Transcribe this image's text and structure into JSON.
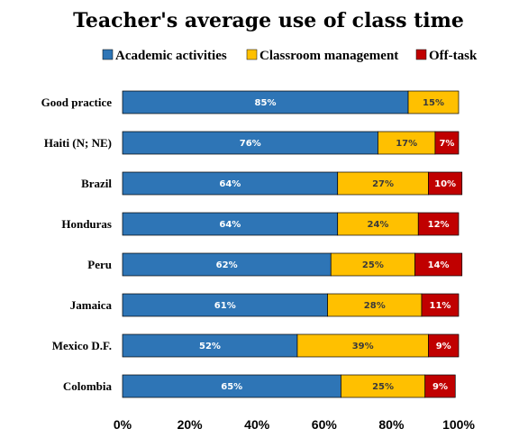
{
  "chart_data": {
    "type": "bar",
    "orientation": "horizontal",
    "stacked": true,
    "title": "Teacher's average use of class time",
    "categories": [
      "Good practice",
      "Haiti (N; NE)",
      "Brazil",
      "Honduras",
      "Peru",
      "Jamaica",
      "Mexico D.F.",
      "Colombia"
    ],
    "series": [
      {
        "name": "Academic activities",
        "color": "#2e75b6",
        "label_color": "#ffffff",
        "values": [
          85,
          76,
          64,
          64,
          62,
          61,
          52,
          65
        ],
        "labels": [
          "85%",
          "76%",
          "64%",
          "64%",
          "62%",
          "61%",
          "52%",
          "65%"
        ]
      },
      {
        "name": "Classroom management",
        "color": "#ffc000",
        "label_color": "#3a3a3a",
        "values": [
          15,
          17,
          27,
          24,
          25,
          28,
          39,
          25
        ],
        "labels": [
          "15%",
          "17%",
          "27%",
          "24%",
          "25%",
          "28%",
          "39%",
          "25%"
        ]
      },
      {
        "name": "Off-task",
        "color": "#c00000",
        "label_color": "#ffffff",
        "values": [
          0,
          7,
          10,
          12,
          14,
          11,
          9,
          9
        ],
        "labels": [
          "",
          "7%",
          "10%",
          "12%",
          "14%",
          "11%",
          "9%",
          "9%"
        ]
      }
    ],
    "xlim": [
      0,
      100
    ],
    "x_ticks": [
      "0%",
      "20%",
      "40%",
      "60%",
      "80%",
      "100%"
    ],
    "legend_position": "top",
    "grid": false
  }
}
